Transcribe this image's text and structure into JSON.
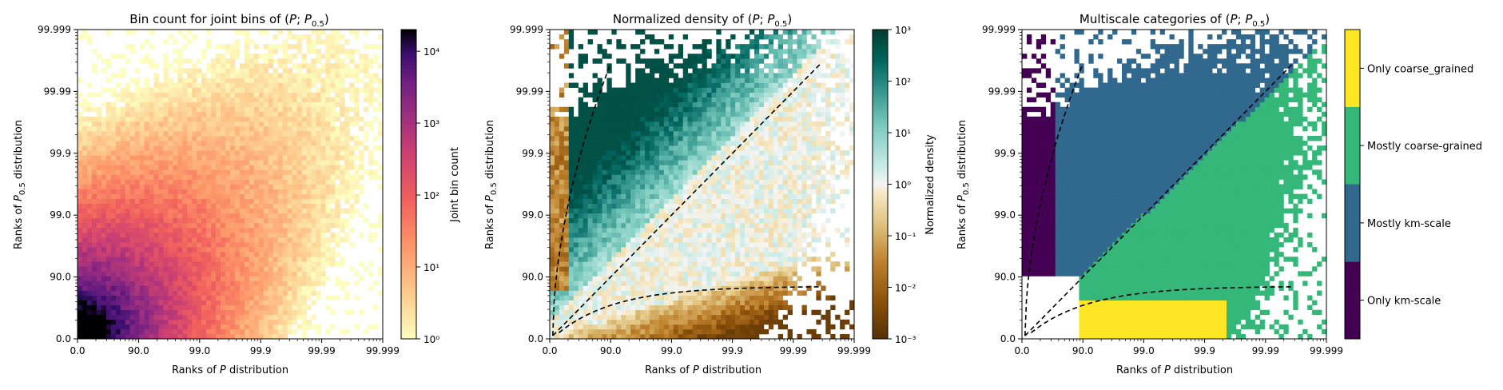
{
  "chart_data": [
    {
      "type": "heatmap",
      "title": "Bin count for joint bins of (P; P0.5)",
      "xlabel": "Ranks of P distribution",
      "ylabel": "Ranks of P0.5 distribution",
      "xticks": [
        "0.0",
        "90.0",
        "99.0",
        "99.9",
        "99.99",
        "99.999"
      ],
      "yticks": [
        "0.0",
        "90.0",
        "99.0",
        "99.9",
        "99.99",
        "99.999"
      ],
      "colorbar": {
        "label": "Joint bin count",
        "scale": "log",
        "range": [
          1,
          20000
        ],
        "ticks": [
          "10⁰",
          "10¹",
          "10²",
          "10³",
          "10⁴"
        ]
      },
      "colormap": "magma_r",
      "grid": false
    },
    {
      "type": "heatmap",
      "title": "Normalized density of (P; P0.5)",
      "xlabel": "Ranks of P distribution",
      "ylabel": "Ranks of P0.5 distribution",
      "xticks": [
        "0.0",
        "90.0",
        "99.0",
        "99.9",
        "99.99",
        "99.999"
      ],
      "yticks": [
        "0.0",
        "90.0",
        "99.0",
        "99.9",
        "99.99",
        "99.999"
      ],
      "colorbar": {
        "label": "Normalized density",
        "scale": "log",
        "range": [
          0.001,
          1000
        ],
        "ticks": [
          "10⁻³",
          "10⁻²",
          "10⁻¹",
          "10⁰",
          "10¹",
          "10²",
          "10³"
        ]
      },
      "colormap": "BrBG",
      "grid": false
    },
    {
      "type": "heatmap",
      "title": "Multiscale categories of (P; P0.5)",
      "xlabel": "Ranks of P distribution",
      "ylabel": "Ranks of P0.5 distribution",
      "xticks": [
        "0.0",
        "90.0",
        "99.0",
        "99.9",
        "99.99",
        "99.999"
      ],
      "yticks": [
        "0.0",
        "90.0",
        "99.0",
        "99.9",
        "99.99",
        "99.999"
      ],
      "categories": [
        {
          "label": "Only km-scale",
          "color": "#440154"
        },
        {
          "label": "Mostly km-scale",
          "color": "#31688e"
        },
        {
          "label": "Mostly coarse-grained",
          "color": "#35b779"
        },
        {
          "label": "Only coarse_grained",
          "color": "#fde725"
        }
      ],
      "grid": false
    }
  ]
}
